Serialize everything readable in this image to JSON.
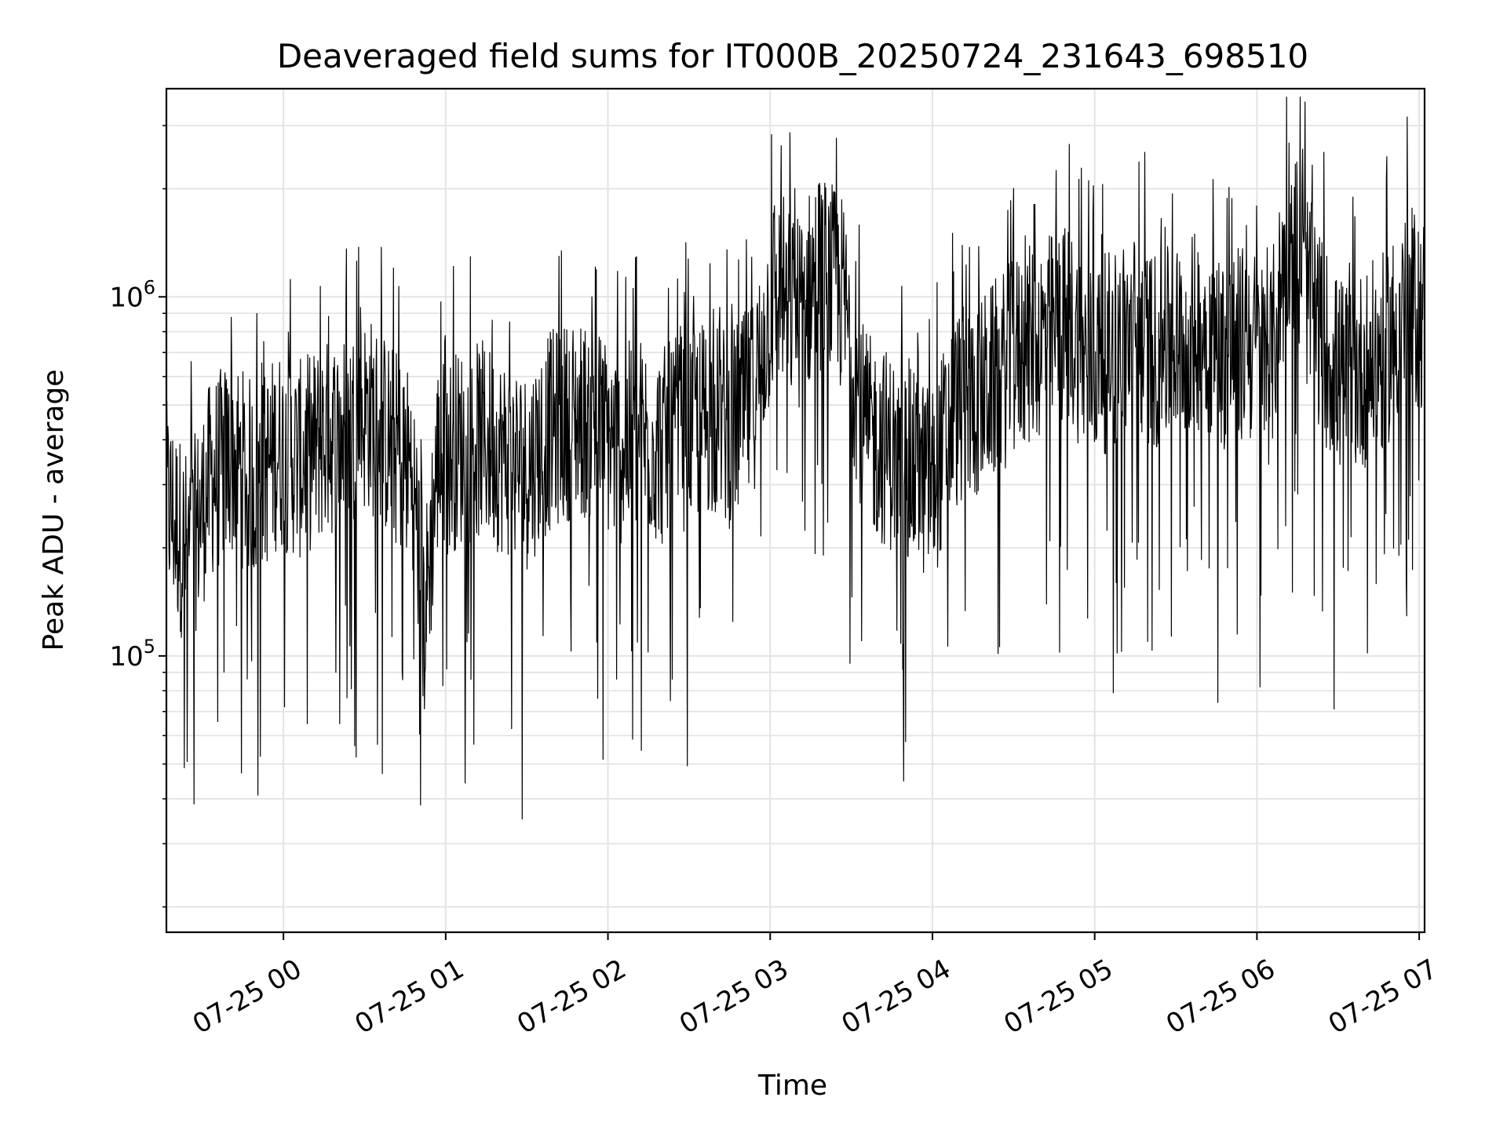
{
  "chart_data": {
    "type": "line",
    "title": "Deaveraged field sums for IT000B_20250724_231643_698510",
    "xlabel": "Time",
    "ylabel": "Peak ADU - average",
    "yscale": "log",
    "xlim": [
      "2025-07-24 23:16:43",
      "2025-07-25 07:02:00"
    ],
    "ylim": [
      17000,
      3800000
    ],
    "grid": true,
    "x_ticks": [
      {
        "value": "2025-07-25 00:00",
        "label": "07-25 00"
      },
      {
        "value": "2025-07-25 01:00",
        "label": "07-25 01"
      },
      {
        "value": "2025-07-25 02:00",
        "label": "07-25 02"
      },
      {
        "value": "2025-07-25 03:00",
        "label": "07-25 03"
      },
      {
        "value": "2025-07-25 04:00",
        "label": "07-25 04"
      },
      {
        "value": "2025-07-25 05:00",
        "label": "07-25 05"
      },
      {
        "value": "2025-07-25 06:00",
        "label": "07-25 06"
      },
      {
        "value": "2025-07-25 07:00",
        "label": "07-25 07"
      }
    ],
    "y_ticks": [
      {
        "value": 100000,
        "base": "10",
        "exp": "5"
      },
      {
        "value": 1000000,
        "base": "10",
        "exp": "6"
      }
    ],
    "line_color": "#000000",
    "series": [
      {
        "x": [
          "23:16",
          "23:25",
          "23:33",
          "23:41",
          "23:50",
          "23:58",
          "00:06",
          "00:15",
          "00:23",
          "00:31",
          "00:40",
          "00:48",
          "00:52",
          "00:57",
          "01:05",
          "01:13",
          "01:22",
          "01:30",
          "01:38",
          "01:47",
          "01:55",
          "02:03",
          "02:12",
          "02:20",
          "02:28",
          "02:37",
          "02:45",
          "02:53",
          "03:02",
          "03:10",
          "03:18",
          "03:27",
          "03:35",
          "03:43",
          "03:52",
          "04:00",
          "04:08",
          "04:17",
          "04:25",
          "04:32",
          "04:42",
          "04:50",
          "04:58",
          "05:07",
          "05:15",
          "05:23",
          "05:32",
          "05:40",
          "05:48",
          "05:57",
          "06:05",
          "06:12",
          "06:22",
          "06:30",
          "06:38",
          "06:47",
          "06:55",
          "07:02"
        ],
        "y": [
          280000,
          190000,
          310000,
          360000,
          300000,
          380000,
          350000,
          400000,
          420000,
          480000,
          390000,
          330000,
          120000,
          350000,
          380000,
          400000,
          360000,
          330000,
          420000,
          460000,
          450000,
          380000,
          410000,
          380000,
          420000,
          470000,
          430000,
          500000,
          1100000,
          900000,
          1200000,
          1000000,
          420000,
          380000,
          330000,
          300000,
          480000,
          520000,
          610000,
          700000,
          780000,
          850000,
          650000,
          720000,
          800000,
          700000,
          760000,
          820000,
          700000,
          750000,
          640000,
          1600000,
          850000,
          600000,
          620000,
          700000,
          950000,
          900000
        ]
      }
    ]
  }
}
